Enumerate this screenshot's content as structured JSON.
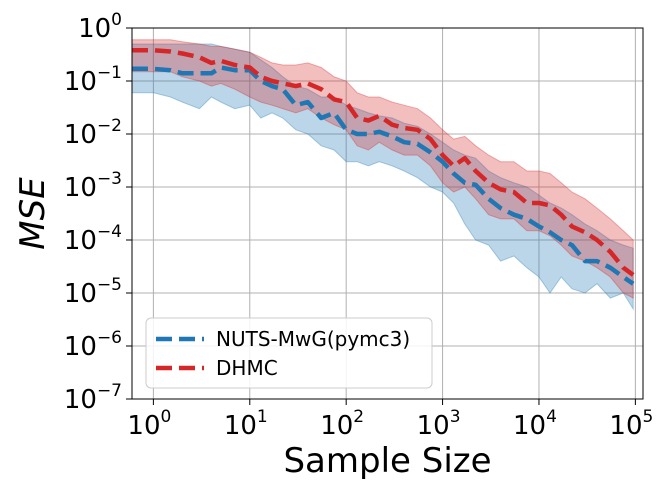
{
  "chart_data": {
    "type": "line",
    "title": "",
    "xlabel": "Sample Size",
    "ylabel": "MSE",
    "xscale": "log",
    "yscale": "log",
    "xlim": [
      0.6,
      120000
    ],
    "ylim": [
      1e-07,
      1
    ],
    "grid": true,
    "x_ticks": [
      {
        "value": 1,
        "base": "10",
        "exp": "0"
      },
      {
        "value": 10,
        "base": "10",
        "exp": "1"
      },
      {
        "value": 100,
        "base": "10",
        "exp": "2"
      },
      {
        "value": 1000,
        "base": "10",
        "exp": "3"
      },
      {
        "value": 10000,
        "base": "10",
        "exp": "4"
      },
      {
        "value": 100000,
        "base": "10",
        "exp": "5"
      }
    ],
    "y_ticks": [
      {
        "value": 1,
        "base": "10",
        "exp": "0"
      },
      {
        "value": 0.1,
        "base": "10",
        "exp": "−1"
      },
      {
        "value": 0.01,
        "base": "10",
        "exp": "−2"
      },
      {
        "value": 0.001,
        "base": "10",
        "exp": "−3"
      },
      {
        "value": 0.0001,
        "base": "10",
        "exp": "−4"
      },
      {
        "value": 1e-05,
        "base": "10",
        "exp": "−5"
      },
      {
        "value": 1e-06,
        "base": "10",
        "exp": "−6"
      },
      {
        "value": 1e-07,
        "base": "10",
        "exp": "−7"
      }
    ],
    "legend_position": "lower-left",
    "series": [
      {
        "name": "NUTS-MwG(pymc3)",
        "color": "#1f77b4",
        "fill_color": "#1f77b4",
        "x": [
          0.6,
          1,
          1.5,
          2,
          3,
          4,
          5,
          7,
          10,
          13,
          17,
          22,
          30,
          40,
          55,
          75,
          100,
          130,
          170,
          220,
          300,
          400,
          550,
          750,
          1000,
          1300,
          1700,
          2200,
          3000,
          4000,
          5500,
          7500,
          10000,
          13000,
          17000,
          22000,
          30000,
          40000,
          55000,
          75000,
          95000
        ],
        "values": [
          0.17,
          0.17,
          0.16,
          0.14,
          0.14,
          0.14,
          0.18,
          0.16,
          0.16,
          0.1,
          0.08,
          0.07,
          0.035,
          0.04,
          0.02,
          0.025,
          0.012,
          0.01,
          0.01,
          0.011,
          0.009,
          0.007,
          0.0065,
          0.0045,
          0.003,
          0.0018,
          0.0012,
          0.0011,
          0.0006,
          0.0004,
          0.0003,
          0.00025,
          0.00018,
          0.00014,
          0.0001,
          8e-05,
          4e-05,
          4e-05,
          3e-05,
          2e-05,
          1.5e-05
        ],
        "upper": [
          0.5,
          0.5,
          0.5,
          0.5,
          0.5,
          0.5,
          0.45,
          0.4,
          0.35,
          0.25,
          0.18,
          0.12,
          0.08,
          0.07,
          0.05,
          0.05,
          0.035,
          0.03,
          0.025,
          0.022,
          0.02,
          0.016,
          0.014,
          0.01,
          0.007,
          0.005,
          0.004,
          0.0035,
          0.002,
          0.0015,
          0.0012,
          0.001,
          0.0007,
          0.0005,
          0.0004,
          0.0003,
          0.0002,
          0.00015,
          0.0001,
          8e-05,
          7e-05
        ],
        "lower": [
          0.06,
          0.06,
          0.05,
          0.04,
          0.03,
          0.05,
          0.04,
          0.03,
          0.035,
          0.02,
          0.025,
          0.02,
          0.012,
          0.01,
          0.006,
          0.005,
          0.003,
          0.003,
          0.0025,
          0.003,
          0.0025,
          0.002,
          0.0015,
          0.001,
          0.0008,
          0.0005,
          0.0002,
          0.0001,
          8e-05,
          4e-05,
          5e-05,
          3e-05,
          2e-05,
          1e-05,
          2e-05,
          1.2e-05,
          1e-05,
          1.5e-05,
          8e-06,
          1e-05,
          5e-06
        ]
      },
      {
        "name": "DHMC",
        "color": "#d62728",
        "fill_color": "#d62728",
        "x": [
          0.6,
          1,
          1.5,
          2,
          3,
          4,
          5,
          7,
          10,
          13,
          17,
          22,
          30,
          40,
          55,
          75,
          100,
          130,
          170,
          220,
          300,
          400,
          550,
          750,
          1000,
          1300,
          1700,
          2200,
          3000,
          4000,
          5500,
          7500,
          10000,
          13000,
          17000,
          22000,
          30000,
          40000,
          55000,
          75000,
          95000
        ],
        "values": [
          0.38,
          0.38,
          0.36,
          0.33,
          0.28,
          0.22,
          0.24,
          0.2,
          0.18,
          0.12,
          0.1,
          0.09,
          0.08,
          0.09,
          0.07,
          0.045,
          0.04,
          0.02,
          0.018,
          0.022,
          0.015,
          0.013,
          0.012,
          0.008,
          0.004,
          0.0025,
          0.0035,
          0.002,
          0.0012,
          0.0009,
          0.0008,
          0.0005,
          0.0005,
          0.00045,
          0.0003,
          0.00018,
          0.00014,
          0.0001,
          6e-05,
          3e-05,
          2.2e-05
        ],
        "upper": [
          0.6,
          0.6,
          0.6,
          0.55,
          0.5,
          0.45,
          0.45,
          0.4,
          0.35,
          0.28,
          0.22,
          0.2,
          0.2,
          0.22,
          0.18,
          0.12,
          0.1,
          0.06,
          0.05,
          0.05,
          0.04,
          0.035,
          0.03,
          0.02,
          0.012,
          0.008,
          0.009,
          0.006,
          0.004,
          0.003,
          0.003,
          0.002,
          0.002,
          0.0018,
          0.0012,
          0.0008,
          0.0006,
          0.0004,
          0.00025,
          0.00015,
          0.0001
        ],
        "lower": [
          0.15,
          0.15,
          0.15,
          0.12,
          0.1,
          0.08,
          0.09,
          0.07,
          0.05,
          0.04,
          0.035,
          0.03,
          0.025,
          0.03,
          0.02,
          0.015,
          0.012,
          0.006,
          0.005,
          0.007,
          0.005,
          0.004,
          0.004,
          0.0025,
          0.0012,
          0.0008,
          0.001,
          0.0006,
          0.0003,
          0.00025,
          0.00025,
          0.00015,
          0.00015,
          0.00012,
          8e-05,
          5e-05,
          4e-05,
          3e-05,
          2e-05,
          1e-05,
          8e-06
        ]
      }
    ]
  }
}
